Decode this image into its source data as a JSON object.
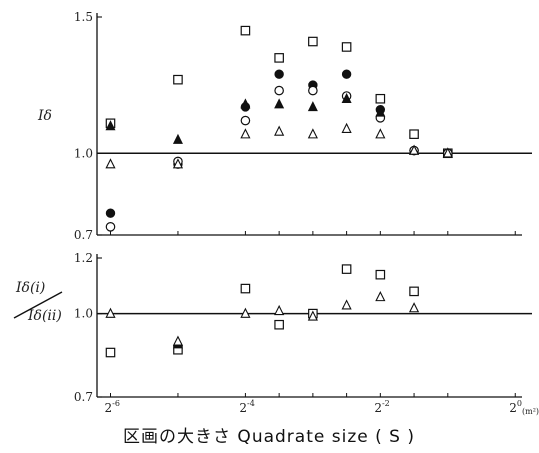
{
  "chart_data": [
    {
      "type": "scatter",
      "title": "",
      "ylabel": "Iδ",
      "xlabel": "区画の大きさ Quadrate size ( S )",
      "x_scale": "log2",
      "xlim": [
        -6.2,
        0.1
      ],
      "ylim": [
        0.7,
        1.5
      ],
      "y_ticks": [
        0.7,
        1.0,
        1.5
      ],
      "y_tick_labels": [
        "0.7",
        "1.0",
        "1.5"
      ],
      "reference_line": 1.0,
      "series": [
        {
          "marker": "square-open",
          "points": [
            [
              -6,
              1.11
            ],
            [
              -5,
              1.27
            ],
            [
              -4,
              1.45
            ],
            [
              -3.5,
              1.35
            ],
            [
              -3,
              1.41
            ],
            [
              -2.5,
              1.39
            ],
            [
              -2,
              1.2
            ],
            [
              -1.5,
              1.07
            ],
            [
              -1,
              1.0
            ]
          ]
        },
        {
          "marker": "circle-filled",
          "points": [
            [
              -6,
              0.78
            ],
            [
              -5,
              0.96
            ],
            [
              -4,
              1.17
            ],
            [
              -3.5,
              1.29
            ],
            [
              -3,
              1.25
            ],
            [
              -2.5,
              1.29
            ],
            [
              -2,
              1.16
            ],
            [
              -1.5,
              1.01
            ],
            [
              -1,
              1.0
            ]
          ]
        },
        {
          "marker": "circle-open",
          "points": [
            [
              -6,
              0.73
            ],
            [
              -5,
              0.97
            ],
            [
              -4,
              1.12
            ],
            [
              -3.5,
              1.23
            ],
            [
              -3,
              1.23
            ],
            [
              -2.5,
              1.21
            ],
            [
              -2,
              1.13
            ],
            [
              -1.5,
              1.01
            ],
            [
              -1,
              1.0
            ]
          ]
        },
        {
          "marker": "triangle-filled",
          "points": [
            [
              -6,
              1.1
            ],
            [
              -5,
              1.05
            ],
            [
              -4,
              1.18
            ],
            [
              -3.5,
              1.18
            ],
            [
              -3,
              1.17
            ],
            [
              -2.5,
              1.2
            ],
            [
              -2,
              1.15
            ],
            [
              -1.5,
              1.01
            ],
            [
              -1,
              1.0
            ]
          ]
        },
        {
          "marker": "triangle-open",
          "points": [
            [
              -6,
              0.96
            ],
            [
              -5,
              0.96
            ],
            [
              -4,
              1.07
            ],
            [
              -3.5,
              1.08
            ],
            [
              -3,
              1.07
            ],
            [
              -2.5,
              1.09
            ],
            [
              -2,
              1.07
            ],
            [
              -1.5,
              1.01
            ],
            [
              -1,
              1.0
            ]
          ]
        }
      ]
    },
    {
      "type": "scatter",
      "title": "",
      "ylabel_top": "Iδ(i)",
      "ylabel_bottom": "Iδ(ii)",
      "x_scale": "log2",
      "xlim": [
        -6.2,
        0.1
      ],
      "ylim": [
        0.7,
        1.2
      ],
      "y_ticks": [
        0.7,
        1.0,
        1.2
      ],
      "y_tick_labels": [
        "0.7",
        "1.0",
        "1.2"
      ],
      "reference_line": 1.0,
      "x_ticks": [
        -6,
        -4,
        -2,
        0
      ],
      "x_tick_labels": [
        "2",
        "2",
        "2",
        "2"
      ],
      "x_tick_exponents": [
        "-6",
        "-4",
        "-2",
        "0"
      ],
      "x_unit": "(m²)",
      "series": [
        {
          "marker": "square-open",
          "points": [
            [
              -6,
              0.86
            ],
            [
              -5,
              0.87
            ],
            [
              -4,
              1.09
            ],
            [
              -3.5,
              0.96
            ],
            [
              -3,
              1.0
            ],
            [
              -2.5,
              1.16
            ],
            [
              -2,
              1.14
            ],
            [
              -1.5,
              1.08
            ]
          ]
        },
        {
          "marker": "triangle-filled",
          "points": [
            [
              -5,
              0.89
            ]
          ]
        },
        {
          "marker": "triangle-open",
          "points": [
            [
              -6,
              1.0
            ],
            [
              -5,
              0.9
            ],
            [
              -4,
              1.0
            ],
            [
              -3.5,
              1.01
            ],
            [
              -3,
              0.99
            ],
            [
              -2.5,
              1.03
            ],
            [
              -2,
              1.06
            ],
            [
              -1.5,
              1.02
            ]
          ]
        }
      ]
    }
  ]
}
